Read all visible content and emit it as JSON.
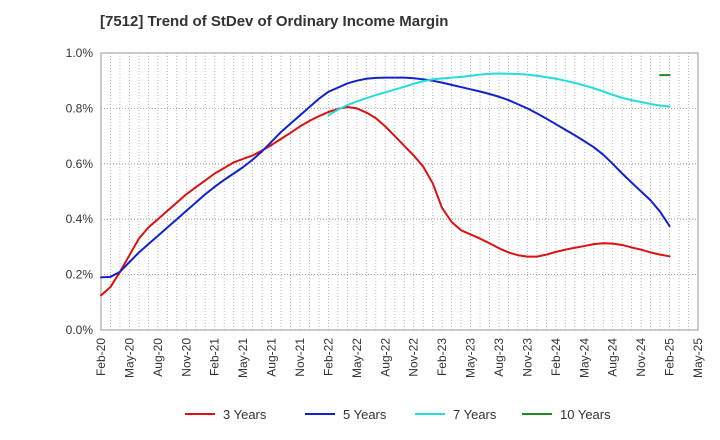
{
  "chart_data": {
    "type": "line",
    "title": "[7512]  Trend of StDev of Ordinary Income Margin",
    "xlabel": "",
    "ylabel": "",
    "ylim": [
      0,
      1.0
    ],
    "xlim": [
      "2020-02",
      "2025-05"
    ],
    "grid": true,
    "legend_position": "bottom",
    "x_tick_labels": [
      "Feb-20",
      "May-20",
      "Aug-20",
      "Nov-20",
      "Feb-21",
      "May-21",
      "Aug-21",
      "Nov-21",
      "Feb-22",
      "May-22",
      "Aug-22",
      "Nov-22",
      "Feb-23",
      "May-23",
      "Aug-23",
      "Nov-23",
      "Feb-24",
      "May-24",
      "Aug-24",
      "Nov-24",
      "Feb-25",
      "May-25"
    ],
    "y_tick_labels": [
      "0.0%",
      "0.2%",
      "0.4%",
      "0.6%",
      "0.8%",
      "1.0%"
    ],
    "y_ticks": [
      0,
      0.2,
      0.4,
      0.6,
      0.8,
      1.0
    ],
    "series": [
      {
        "name": "3 Years",
        "color": "#dd1111",
        "points": [
          [
            "2020-02",
            0.125
          ],
          [
            "2020-03",
            0.155
          ],
          [
            "2020-04",
            0.21
          ],
          [
            "2020-05",
            0.27
          ],
          [
            "2020-06",
            0.33
          ],
          [
            "2020-07",
            0.37
          ],
          [
            "2020-08",
            0.4
          ],
          [
            "2020-09",
            0.43
          ],
          [
            "2020-10",
            0.46
          ],
          [
            "2020-11",
            0.49
          ],
          [
            "2020-12",
            0.515
          ],
          [
            "2021-01",
            0.54
          ],
          [
            "2021-02",
            0.565
          ],
          [
            "2021-03",
            0.585
          ],
          [
            "2021-04",
            0.605
          ],
          [
            "2021-05",
            0.618
          ],
          [
            "2021-06",
            0.63
          ],
          [
            "2021-07",
            0.648
          ],
          [
            "2021-08",
            0.668
          ],
          [
            "2021-09",
            0.69
          ],
          [
            "2021-10",
            0.712
          ],
          [
            "2021-11",
            0.735
          ],
          [
            "2021-12",
            0.755
          ],
          [
            "2022-01",
            0.772
          ],
          [
            "2022-02",
            0.787
          ],
          [
            "2022-03",
            0.798
          ],
          [
            "2022-04",
            0.805
          ],
          [
            "2022-05",
            0.8
          ],
          [
            "2022-06",
            0.785
          ],
          [
            "2022-07",
            0.765
          ],
          [
            "2022-08",
            0.735
          ],
          [
            "2022-09",
            0.7
          ],
          [
            "2022-10",
            0.665
          ],
          [
            "2022-11",
            0.63
          ],
          [
            "2022-12",
            0.59
          ],
          [
            "2023-01",
            0.53
          ],
          [
            "2023-02",
            0.44
          ],
          [
            "2023-03",
            0.39
          ],
          [
            "2023-04",
            0.36
          ],
          [
            "2023-05",
            0.345
          ],
          [
            "2023-06",
            0.33
          ],
          [
            "2023-07",
            0.313
          ],
          [
            "2023-08",
            0.295
          ],
          [
            "2023-09",
            0.28
          ],
          [
            "2023-10",
            0.27
          ],
          [
            "2023-11",
            0.265
          ],
          [
            "2023-12",
            0.265
          ],
          [
            "2024-01",
            0.272
          ],
          [
            "2024-02",
            0.282
          ],
          [
            "2024-03",
            0.29
          ],
          [
            "2024-04",
            0.297
          ],
          [
            "2024-05",
            0.303
          ],
          [
            "2024-06",
            0.31
          ],
          [
            "2024-07",
            0.313
          ],
          [
            "2024-08",
            0.312
          ],
          [
            "2024-09",
            0.307
          ],
          [
            "2024-10",
            0.298
          ],
          [
            "2024-11",
            0.29
          ],
          [
            "2024-12",
            0.28
          ],
          [
            "2025-01",
            0.272
          ],
          [
            "2025-02",
            0.266
          ]
        ]
      },
      {
        "name": "5 Years",
        "color": "#1122cc",
        "points": [
          [
            "2020-02",
            0.19
          ],
          [
            "2020-03",
            0.192
          ],
          [
            "2020-04",
            0.21
          ],
          [
            "2020-05",
            0.245
          ],
          [
            "2020-06",
            0.28
          ],
          [
            "2020-07",
            0.31
          ],
          [
            "2020-08",
            0.34
          ],
          [
            "2020-09",
            0.37
          ],
          [
            "2020-10",
            0.4
          ],
          [
            "2020-11",
            0.43
          ],
          [
            "2020-12",
            0.46
          ],
          [
            "2021-01",
            0.49
          ],
          [
            "2021-02",
            0.517
          ],
          [
            "2021-03",
            0.542
          ],
          [
            "2021-04",
            0.565
          ],
          [
            "2021-05",
            0.588
          ],
          [
            "2021-06",
            0.615
          ],
          [
            "2021-07",
            0.645
          ],
          [
            "2021-08",
            0.68
          ],
          [
            "2021-09",
            0.715
          ],
          [
            "2021-10",
            0.745
          ],
          [
            "2021-11",
            0.775
          ],
          [
            "2021-12",
            0.805
          ],
          [
            "2022-01",
            0.835
          ],
          [
            "2022-02",
            0.86
          ],
          [
            "2022-03",
            0.875
          ],
          [
            "2022-04",
            0.89
          ],
          [
            "2022-05",
            0.9
          ],
          [
            "2022-06",
            0.907
          ],
          [
            "2022-07",
            0.91
          ],
          [
            "2022-08",
            0.911
          ],
          [
            "2022-09",
            0.911
          ],
          [
            "2022-10",
            0.911
          ],
          [
            "2022-11",
            0.909
          ],
          [
            "2022-12",
            0.905
          ],
          [
            "2023-01",
            0.9
          ],
          [
            "2023-02",
            0.893
          ],
          [
            "2023-03",
            0.885
          ],
          [
            "2023-04",
            0.877
          ],
          [
            "2023-05",
            0.869
          ],
          [
            "2023-06",
            0.861
          ],
          [
            "2023-07",
            0.852
          ],
          [
            "2023-08",
            0.842
          ],
          [
            "2023-09",
            0.83
          ],
          [
            "2023-10",
            0.815
          ],
          [
            "2023-11",
            0.8
          ],
          [
            "2023-12",
            0.782
          ],
          [
            "2024-01",
            0.763
          ],
          [
            "2024-02",
            0.743
          ],
          [
            "2024-03",
            0.723
          ],
          [
            "2024-04",
            0.703
          ],
          [
            "2024-05",
            0.682
          ],
          [
            "2024-06",
            0.66
          ],
          [
            "2024-07",
            0.633
          ],
          [
            "2024-08",
            0.6
          ],
          [
            "2024-09",
            0.565
          ],
          [
            "2024-10",
            0.532
          ],
          [
            "2024-11",
            0.5
          ],
          [
            "2024-12",
            0.468
          ],
          [
            "2025-01",
            0.427
          ],
          [
            "2025-02",
            0.375
          ]
        ]
      },
      {
        "name": "7 Years",
        "color": "#22dddd",
        "points": [
          [
            "2022-02",
            0.775
          ],
          [
            "2022-03",
            0.795
          ],
          [
            "2022-04",
            0.812
          ],
          [
            "2022-05",
            0.825
          ],
          [
            "2022-06",
            0.837
          ],
          [
            "2022-07",
            0.848
          ],
          [
            "2022-08",
            0.858
          ],
          [
            "2022-09",
            0.868
          ],
          [
            "2022-10",
            0.878
          ],
          [
            "2022-11",
            0.889
          ],
          [
            "2022-12",
            0.898
          ],
          [
            "2023-01",
            0.905
          ],
          [
            "2023-02",
            0.908
          ],
          [
            "2023-03",
            0.911
          ],
          [
            "2023-04",
            0.914
          ],
          [
            "2023-05",
            0.918
          ],
          [
            "2023-06",
            0.922
          ],
          [
            "2023-07",
            0.925
          ],
          [
            "2023-08",
            0.926
          ],
          [
            "2023-09",
            0.925
          ],
          [
            "2023-10",
            0.924
          ],
          [
            "2023-11",
            0.922
          ],
          [
            "2023-12",
            0.918
          ],
          [
            "2024-01",
            0.913
          ],
          [
            "2024-02",
            0.907
          ],
          [
            "2024-03",
            0.9
          ],
          [
            "2024-04",
            0.892
          ],
          [
            "2024-05",
            0.883
          ],
          [
            "2024-06",
            0.873
          ],
          [
            "2024-07",
            0.861
          ],
          [
            "2024-08",
            0.849
          ],
          [
            "2024-09",
            0.838
          ],
          [
            "2024-10",
            0.83
          ],
          [
            "2024-11",
            0.823
          ],
          [
            "2024-12",
            0.816
          ],
          [
            "2025-01",
            0.81
          ],
          [
            "2025-02",
            0.807
          ]
        ]
      },
      {
        "name": "10 Years",
        "color": "#228822",
        "points": [
          [
            "2025-01",
            0.92
          ],
          [
            "2025-02",
            0.92
          ]
        ]
      }
    ]
  },
  "legend": {
    "items": [
      {
        "label": "3 Years",
        "color": "#dd1111"
      },
      {
        "label": "5 Years",
        "color": "#1122cc"
      },
      {
        "label": "7 Years",
        "color": "#22dddd"
      },
      {
        "label": "10 Years",
        "color": "#228822"
      }
    ]
  }
}
